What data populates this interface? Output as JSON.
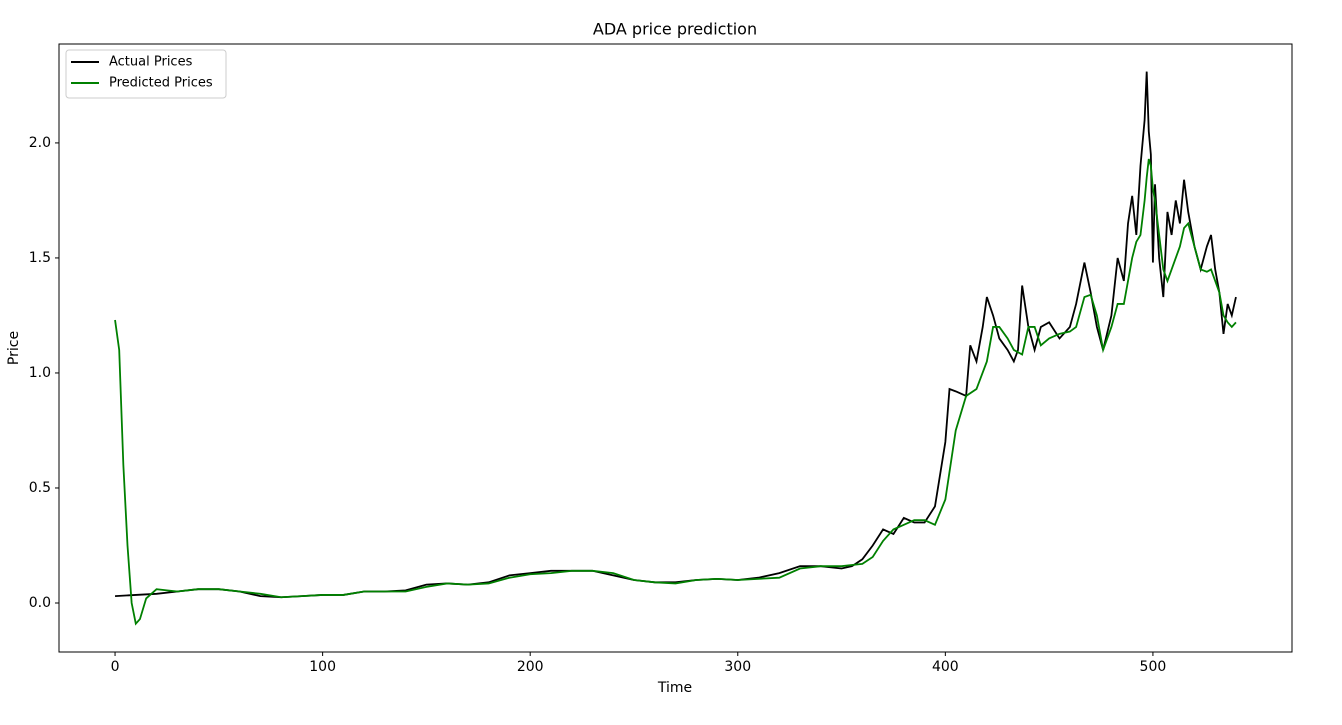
{
  "chart_data": {
    "type": "line",
    "title": "ADA price prediction",
    "x_label": "Time",
    "y_label": "Price",
    "xlim": [
      -27,
      567
    ],
    "ylim": [
      -0.213,
      2.43
    ],
    "xticks": [
      0,
      100,
      200,
      300,
      400,
      500
    ],
    "yticks": [
      {
        "value": 0,
        "label": "0.0"
      },
      0.5,
      {
        "value": 1,
        "label": "1.0"
      },
      1.5,
      {
        "value": 2,
        "label": "2.0"
      }
    ],
    "legend": "upper left",
    "series": [
      {
        "name": "Actual Prices",
        "color": "#000000",
        "x": [
          0,
          10,
          20,
          30,
          40,
          50,
          60,
          70,
          80,
          90,
          100,
          110,
          120,
          130,
          140,
          150,
          160,
          170,
          180,
          190,
          200,
          210,
          220,
          230,
          240,
          250,
          260,
          270,
          280,
          290,
          300,
          310,
          320,
          330,
          340,
          350,
          355,
          360,
          365,
          370,
          375,
          380,
          385,
          390,
          395,
          400,
          402,
          405,
          410,
          412,
          415,
          418,
          420,
          423,
          426,
          430,
          433,
          435,
          437,
          440,
          443,
          446,
          450,
          455,
          460,
          463,
          467,
          470,
          473,
          476,
          480,
          483,
          486,
          488,
          490,
          492,
          494,
          496,
          497,
          498,
          499,
          500,
          501,
          503,
          505,
          507,
          509,
          511,
          513,
          515,
          517,
          520,
          523,
          526,
          528,
          530,
          532,
          534,
          536,
          538,
          540
        ],
        "values": [
          0.03,
          0.035,
          0.04,
          0.05,
          0.06,
          0.06,
          0.05,
          0.03,
          0.025,
          0.03,
          0.035,
          0.035,
          0.05,
          0.05,
          0.055,
          0.08,
          0.085,
          0.08,
          0.09,
          0.12,
          0.13,
          0.14,
          0.14,
          0.14,
          0.12,
          0.1,
          0.09,
          0.09,
          0.1,
          0.105,
          0.1,
          0.11,
          0.13,
          0.16,
          0.16,
          0.15,
          0.16,
          0.19,
          0.25,
          0.32,
          0.3,
          0.37,
          0.35,
          0.35,
          0.42,
          0.7,
          0.93,
          0.92,
          0.9,
          1.12,
          1.05,
          1.2,
          1.33,
          1.25,
          1.15,
          1.1,
          1.05,
          1.1,
          1.38,
          1.2,
          1.1,
          1.2,
          1.22,
          1.15,
          1.2,
          1.3,
          1.48,
          1.35,
          1.2,
          1.1,
          1.25,
          1.5,
          1.4,
          1.65,
          1.77,
          1.6,
          1.9,
          2.1,
          2.31,
          2.05,
          1.95,
          1.48,
          1.82,
          1.5,
          1.33,
          1.7,
          1.6,
          1.75,
          1.65,
          1.84,
          1.7,
          1.55,
          1.45,
          1.55,
          1.6,
          1.45,
          1.35,
          1.17,
          1.3,
          1.25,
          1.33
        ]
      },
      {
        "name": "Predicted Prices",
        "color": "#008000",
        "x": [
          0,
          2,
          4,
          6,
          8,
          10,
          12,
          15,
          20,
          25,
          30,
          40,
          50,
          60,
          70,
          80,
          90,
          100,
          110,
          120,
          130,
          140,
          150,
          160,
          170,
          180,
          190,
          200,
          210,
          220,
          230,
          240,
          250,
          260,
          270,
          280,
          290,
          300,
          310,
          320,
          330,
          340,
          350,
          355,
          360,
          365,
          370,
          375,
          380,
          385,
          390,
          395,
          400,
          405,
          410,
          415,
          420,
          423,
          426,
          430,
          433,
          437,
          440,
          443,
          446,
          450,
          455,
          460,
          463,
          467,
          470,
          473,
          476,
          480,
          483,
          486,
          488,
          490,
          492,
          494,
          496,
          497,
          498,
          499,
          500,
          501,
          503,
          505,
          507,
          509,
          511,
          513,
          515,
          517,
          520,
          523,
          526,
          528,
          530,
          532,
          534,
          536,
          538,
          540
        ],
        "values": [
          1.23,
          1.1,
          0.6,
          0.25,
          0.0,
          -0.09,
          -0.07,
          0.02,
          0.06,
          0.055,
          0.05,
          0.06,
          0.06,
          0.05,
          0.04,
          0.025,
          0.03,
          0.035,
          0.035,
          0.05,
          0.05,
          0.05,
          0.07,
          0.085,
          0.08,
          0.085,
          0.11,
          0.125,
          0.13,
          0.14,
          0.14,
          0.13,
          0.1,
          0.09,
          0.085,
          0.1,
          0.105,
          0.1,
          0.105,
          0.11,
          0.15,
          0.16,
          0.16,
          0.165,
          0.17,
          0.2,
          0.27,
          0.32,
          0.34,
          0.36,
          0.36,
          0.34,
          0.45,
          0.75,
          0.9,
          0.93,
          1.05,
          1.2,
          1.2,
          1.15,
          1.1,
          1.08,
          1.2,
          1.2,
          1.12,
          1.15,
          1.17,
          1.18,
          1.2,
          1.33,
          1.34,
          1.25,
          1.1,
          1.2,
          1.3,
          1.3,
          1.4,
          1.5,
          1.57,
          1.6,
          1.75,
          1.85,
          1.93,
          1.9,
          1.8,
          1.75,
          1.6,
          1.45,
          1.4,
          1.45,
          1.5,
          1.55,
          1.63,
          1.65,
          1.55,
          1.45,
          1.44,
          1.45,
          1.4,
          1.35,
          1.25,
          1.22,
          1.2,
          1.22
        ]
      }
    ]
  }
}
